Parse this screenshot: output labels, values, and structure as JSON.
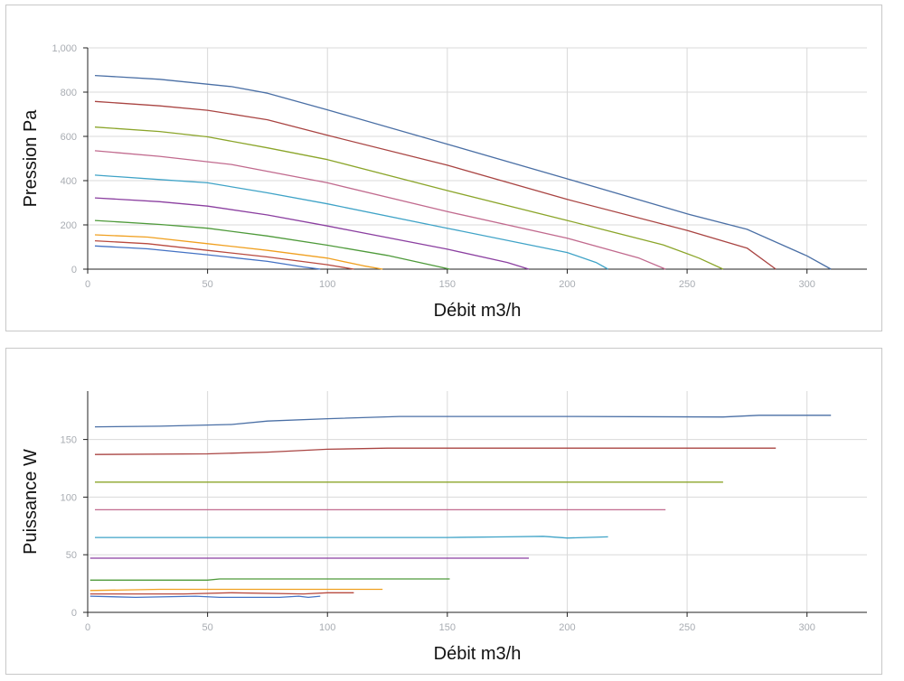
{
  "chart_data": [
    {
      "type": "line",
      "xlabel": "Débit m3/h",
      "ylabel": "Pression Pa",
      "xlim": [
        0,
        325
      ],
      "ylim": [
        0,
        1000
      ],
      "xticks": [
        0,
        50,
        100,
        150,
        200,
        250,
        300
      ],
      "xtick_labels": [
        "0",
        "50",
        "100",
        "150",
        "200",
        "250",
        "300"
      ],
      "yticks": [
        0,
        200,
        400,
        600,
        800,
        1000
      ],
      "ytick_labels": [
        "0",
        "200",
        "400",
        "600",
        "800",
        "1,000"
      ],
      "grid": true,
      "series": [
        {
          "color": "#4a6fa5",
          "points": [
            [
              3,
              875
            ],
            [
              30,
              858
            ],
            [
              60,
              825
            ],
            [
              75,
              795
            ],
            [
              100,
              720
            ],
            [
              150,
              565
            ],
            [
              200,
              408
            ],
            [
              250,
              250
            ],
            [
              275,
              180
            ],
            [
              300,
              60
            ],
            [
              310,
              0
            ]
          ]
        },
        {
          "color": "#a94442",
          "points": [
            [
              3,
              758
            ],
            [
              30,
              738
            ],
            [
              50,
              718
            ],
            [
              75,
              675
            ],
            [
              100,
              605
            ],
            [
              150,
              470
            ],
            [
              200,
              315
            ],
            [
              250,
              175
            ],
            [
              275,
              95
            ],
            [
              287,
              0
            ]
          ]
        },
        {
          "color": "#8ba52a",
          "points": [
            [
              3,
              642
            ],
            [
              30,
              622
            ],
            [
              50,
              598
            ],
            [
              75,
              548
            ],
            [
              100,
              495
            ],
            [
              150,
              355
            ],
            [
              200,
              220
            ],
            [
              240,
              110
            ],
            [
              255,
              50
            ],
            [
              265,
              0
            ]
          ]
        },
        {
          "color": "#c16a8e",
          "points": [
            [
              3,
              535
            ],
            [
              30,
              510
            ],
            [
              60,
              473
            ],
            [
              100,
              390
            ],
            [
              150,
              260
            ],
            [
              200,
              140
            ],
            [
              230,
              50
            ],
            [
              241,
              0
            ]
          ]
        },
        {
          "color": "#3fa3c7",
          "points": [
            [
              3,
              425
            ],
            [
              30,
              405
            ],
            [
              50,
              390
            ],
            [
              75,
              345
            ],
            [
              100,
              295
            ],
            [
              150,
              185
            ],
            [
              200,
              75
            ],
            [
              212,
              30
            ],
            [
              217,
              0
            ]
          ]
        },
        {
          "color": "#8b3fa0",
          "points": [
            [
              3,
              322
            ],
            [
              30,
              305
            ],
            [
              50,
              285
            ],
            [
              75,
              245
            ],
            [
              100,
              195
            ],
            [
              150,
              90
            ],
            [
              175,
              30
            ],
            [
              184,
              0
            ]
          ]
        },
        {
          "color": "#4e9a3a",
          "points": [
            [
              3,
              220
            ],
            [
              30,
              202
            ],
            [
              50,
              185
            ],
            [
              75,
              150
            ],
            [
              100,
              108
            ],
            [
              125,
              62
            ],
            [
              151,
              0
            ]
          ]
        },
        {
          "color": "#f0a020",
          "points": [
            [
              3,
              155
            ],
            [
              25,
              145
            ],
            [
              50,
              115
            ],
            [
              75,
              85
            ],
            [
              100,
              50
            ],
            [
              115,
              15
            ],
            [
              123,
              0
            ]
          ]
        },
        {
          "color": "#b94a3f",
          "points": [
            [
              3,
              128
            ],
            [
              25,
              115
            ],
            [
              50,
              85
            ],
            [
              75,
              55
            ],
            [
              100,
              20
            ],
            [
              111,
              0
            ]
          ]
        },
        {
          "color": "#4472c4",
          "points": [
            [
              3,
              105
            ],
            [
              25,
              92
            ],
            [
              50,
              65
            ],
            [
              75,
              35
            ],
            [
              90,
              10
            ],
            [
              97,
              0
            ]
          ]
        }
      ]
    },
    {
      "type": "line",
      "xlabel": "Débit m3/h",
      "ylabel": "Puissance W",
      "xlim": [
        0,
        325
      ],
      "ylim": [
        0,
        192
      ],
      "xticks": [
        0,
        50,
        100,
        150,
        200,
        250,
        300
      ],
      "xtick_labels": [
        "0",
        "50",
        "100",
        "150",
        "200",
        "250",
        "300"
      ],
      "yticks": [
        0,
        50,
        100,
        150
      ],
      "ytick_labels": [
        "0",
        "50",
        "100",
        "150"
      ],
      "grid": true,
      "series": [
        {
          "color": "#4a6fa5",
          "points": [
            [
              3,
              161
            ],
            [
              30,
              161.5
            ],
            [
              60,
              163
            ],
            [
              75,
              166
            ],
            [
              100,
              168
            ],
            [
              130,
              170
            ],
            [
              200,
              170
            ],
            [
              265,
              169.5
            ],
            [
              280,
              171
            ],
            [
              310,
              171
            ]
          ]
        },
        {
          "color": "#a94442",
          "points": [
            [
              3,
              137
            ],
            [
              50,
              137.5
            ],
            [
              75,
              139
            ],
            [
              100,
              141.5
            ],
            [
              125,
              142.5
            ],
            [
              287,
              142.5
            ]
          ]
        },
        {
          "color": "#8ba52a",
          "points": [
            [
              3,
              113
            ],
            [
              265,
              113
            ]
          ]
        },
        {
          "color": "#c16a8e",
          "points": [
            [
              3,
              89
            ],
            [
              241,
              89
            ]
          ]
        },
        {
          "color": "#3fa3c7",
          "points": [
            [
              3,
              65
            ],
            [
              150,
              65
            ],
            [
              175,
              65.5
            ],
            [
              190,
              66
            ],
            [
              200,
              64.5
            ],
            [
              217,
              65.5
            ]
          ]
        },
        {
          "color": "#8b3fa0",
          "points": [
            [
              1,
              47
            ],
            [
              184,
              47
            ]
          ]
        },
        {
          "color": "#4e9a3a",
          "points": [
            [
              1,
              28
            ],
            [
              50,
              28
            ],
            [
              55,
              29
            ],
            [
              151,
              29
            ]
          ]
        },
        {
          "color": "#f0a020",
          "points": [
            [
              1,
              19
            ],
            [
              30,
              20
            ],
            [
              123,
              20
            ]
          ]
        },
        {
          "color": "#b94a3f",
          "points": [
            [
              1,
              16
            ],
            [
              40,
              16
            ],
            [
              60,
              17
            ],
            [
              90,
              16
            ],
            [
              100,
              17
            ],
            [
              111,
              17
            ]
          ]
        },
        {
          "color": "#4472c4",
          "points": [
            [
              1,
              14
            ],
            [
              20,
              13
            ],
            [
              45,
              14
            ],
            [
              55,
              13
            ],
            [
              80,
              13
            ],
            [
              88,
              14
            ],
            [
              92,
              13
            ],
            [
              97,
              14
            ]
          ]
        }
      ]
    }
  ]
}
